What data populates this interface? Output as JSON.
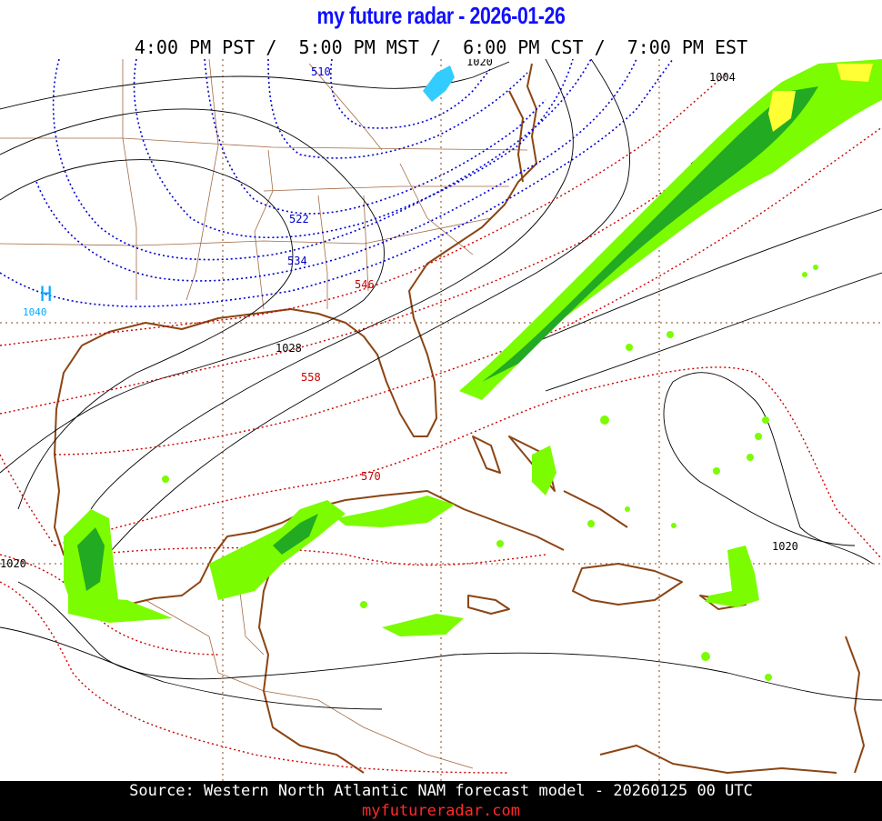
{
  "header": {
    "title": "my future radar - 2026-01-26",
    "times": "4:00 PM PST /  5:00 PM MST /  6:00 PM CST /  7:00 PM EST"
  },
  "map": {
    "high_pressure": {
      "symbol": "H",
      "value": "1040"
    },
    "pressure_labels": [
      "1020",
      "1004",
      "1028",
      "1020",
      "1020"
    ],
    "thickness_labels_blue": [
      "510",
      "522",
      "534"
    ],
    "thickness_labels_red": [
      "546",
      "558",
      "570"
    ],
    "colors": {
      "coast": "#8b4513",
      "isobar": "#000000",
      "thickness_cold": "#0000cc",
      "thickness_warm": "#cc0000",
      "precip_light": "#7cfc00",
      "precip_moderate": "#22aa22",
      "precip_heavy": "#ffff33",
      "snow": "#33ccff",
      "high_center": "#00aaff"
    }
  },
  "footer": {
    "source": "Source: Western North Atlantic NAM forecast model - 20260125 00 UTC",
    "site": "myfutureradar.com"
  }
}
